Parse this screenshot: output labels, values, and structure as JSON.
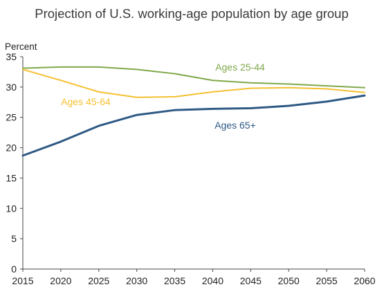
{
  "chart_data": {
    "type": "line",
    "title": "Projection of U.S. working-age population by age group",
    "ylabel": "Percent",
    "xlabel": "",
    "x": [
      2015,
      2020,
      2025,
      2030,
      2035,
      2040,
      2045,
      2050,
      2055,
      2060
    ],
    "xlim": [
      2015,
      2060
    ],
    "ylim": [
      0,
      35
    ],
    "yticks": [
      0,
      5,
      10,
      15,
      20,
      25,
      30,
      35
    ],
    "grid": false,
    "legend": "inline labels",
    "series": [
      {
        "name": "Ages 25-44",
        "color": "#7fa84a",
        "values": [
          33.1,
          33.3,
          33.3,
          32.9,
          32.2,
          31.1,
          30.7,
          30.5,
          30.2,
          29.9
        ]
      },
      {
        "name": "Ages 45-64",
        "color": "#f5c030",
        "values": [
          32.9,
          31.1,
          29.2,
          28.3,
          28.4,
          29.2,
          29.8,
          29.9,
          29.7,
          29.1
        ]
      },
      {
        "name": "Ages 65+",
        "color": "#2e5984",
        "values": [
          18.7,
          21.0,
          23.6,
          25.4,
          26.2,
          26.4,
          26.5,
          26.9,
          27.6,
          28.6
        ]
      }
    ]
  }
}
